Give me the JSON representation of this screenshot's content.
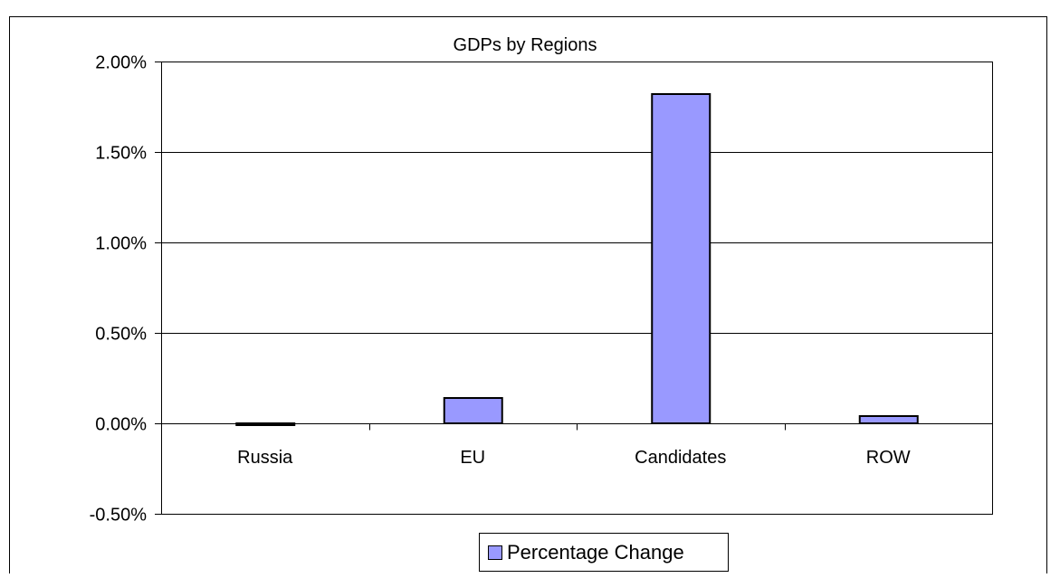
{
  "chart_data": {
    "type": "bar",
    "title": "GDPs by Regions",
    "categories": [
      "Russia",
      "EU",
      "Candidates",
      "ROW"
    ],
    "series": [
      {
        "name": "Percentage Change",
        "values": [
          -0.0001,
          0.0014,
          0.0182,
          0.0004
        ]
      }
    ],
    "xlabel": "",
    "ylabel": "",
    "ylim": [
      -0.005,
      0.02
    ],
    "yticks": [
      "-0.50%",
      "0.00%",
      "0.50%",
      "1.00%",
      "1.50%",
      "2.00%"
    ],
    "grid": true,
    "legend_position": "bottom",
    "colors": {
      "bar_fill": "#9999ff",
      "bar_stroke": "#000000",
      "gridline": "#000000",
      "background": "#ffffff"
    }
  }
}
